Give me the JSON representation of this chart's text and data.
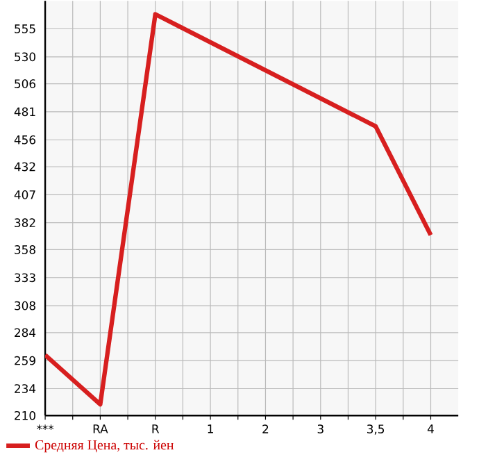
{
  "chart_data": {
    "type": "line",
    "categories": [
      "***",
      "RA",
      "R",
      "1",
      "2",
      "3",
      "3,5",
      "4"
    ],
    "series": [
      {
        "name": "Средняя Цена, тыс. йен",
        "color": "#d71f1f",
        "values": [
          264,
          220,
          568,
          null,
          null,
          null,
          468,
          371
        ]
      }
    ],
    "ylim": [
      210,
      580
    ],
    "yticks": [
      210,
      234,
      259,
      284,
      308,
      333,
      358,
      382,
      407,
      432,
      456,
      481,
      506,
      530,
      555
    ],
    "grid": true,
    "legend": "bottom left",
    "marker": "none",
    "line_style": "solid"
  }
}
